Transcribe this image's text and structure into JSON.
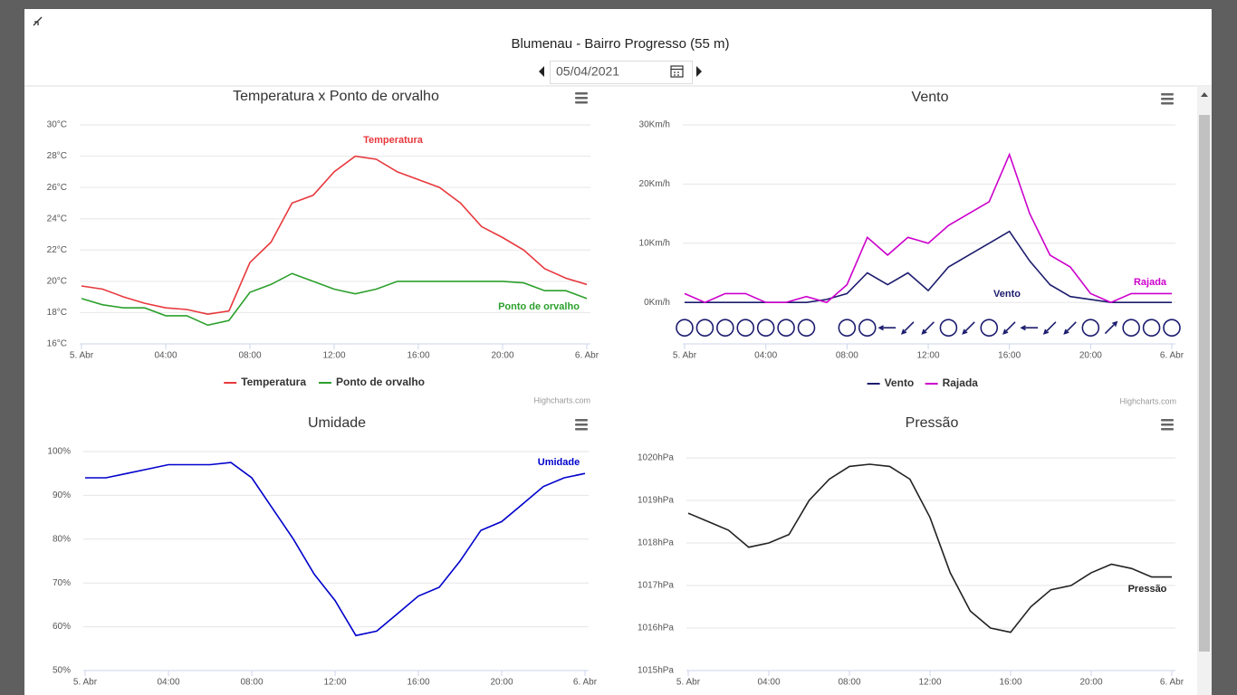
{
  "header": {
    "title": "Blumenau - Bairro Progresso (55 m)",
    "date": "05/04/2021"
  },
  "chart_data": [
    {
      "type": "line",
      "title": "Temperatura x Ponto de orvalho",
      "legend": true,
      "grid": true,
      "credits": "Highcharts.com",
      "x": [
        0,
        1,
        2,
        3,
        4,
        5,
        6,
        7,
        8,
        9,
        10,
        11,
        12,
        13,
        14,
        15,
        16,
        17,
        18,
        19,
        20,
        21,
        22,
        23,
        24
      ],
      "xlim": [
        0,
        24
      ],
      "xticks": [
        {
          "value": 0,
          "label": "5. Abr"
        },
        {
          "value": 4,
          "label": "04:00"
        },
        {
          "value": 8,
          "label": "08:00"
        },
        {
          "value": 12,
          "label": "12:00"
        },
        {
          "value": 16,
          "label": "16:00"
        },
        {
          "value": 20,
          "label": "20:00"
        },
        {
          "value": 24,
          "label": "6. Abr"
        }
      ],
      "ylim": [
        16,
        30
      ],
      "yticks": [
        {
          "value": 16,
          "label": "16°C"
        },
        {
          "value": 18,
          "label": "18°C"
        },
        {
          "value": 20,
          "label": "20°C"
        },
        {
          "value": 22,
          "label": "22°C"
        },
        {
          "value": 24,
          "label": "24°C"
        },
        {
          "value": 26,
          "label": "26°C"
        },
        {
          "value": 28,
          "label": "28°C"
        },
        {
          "value": 30,
          "label": "30°C"
        }
      ],
      "series": [
        {
          "name": "Temperatura",
          "color": "#e8383d",
          "values": [
            19.7,
            19.5,
            19.0,
            18.6,
            18.3,
            18.2,
            17.9,
            18.1,
            21.2,
            22.5,
            25.0,
            25.5,
            27.0,
            28.0,
            27.8,
            27.0,
            26.5,
            26.0,
            25.0,
            23.5,
            22.8,
            22.0,
            20.8,
            20.2,
            19.8
          ]
        },
        {
          "name": "Ponto de orvalho",
          "color": "#2ca02c",
          "values": [
            18.9,
            18.5,
            18.3,
            18.3,
            17.8,
            17.8,
            17.2,
            17.5,
            19.3,
            19.8,
            20.5,
            20.0,
            19.5,
            19.2,
            19.5,
            20.0,
            20.0,
            20.0,
            20.0,
            20.0,
            20.0,
            19.9,
            19.4,
            19.4,
            18.9
          ]
        }
      ]
    },
    {
      "type": "line",
      "title": "Vento",
      "legend": true,
      "grid": true,
      "credits": "Highcharts.com",
      "x": [
        0,
        1,
        2,
        3,
        4,
        5,
        6,
        7,
        8,
        9,
        10,
        11,
        12,
        13,
        14,
        15,
        16,
        17,
        18,
        19,
        20,
        21,
        22,
        23,
        24
      ],
      "xlim": [
        0,
        24
      ],
      "xticks": [
        {
          "value": 0,
          "label": "5. Abr"
        },
        {
          "value": 4,
          "label": "04:00"
        },
        {
          "value": 8,
          "label": "08:00"
        },
        {
          "value": 12,
          "label": "12:00"
        },
        {
          "value": 16,
          "label": "16:00"
        },
        {
          "value": 20,
          "label": "20:00"
        },
        {
          "value": 24,
          "label": "6. Abr"
        }
      ],
      "ylim": [
        -7,
        30
      ],
      "yticks": [
        {
          "value": 0,
          "label": "0Km/h"
        },
        {
          "value": 10,
          "label": "10Km/h"
        },
        {
          "value": 20,
          "label": "20Km/h"
        },
        {
          "value": 30,
          "label": "30Km/h"
        }
      ],
      "series": [
        {
          "name": "Vento",
          "color": "#1c1c6e",
          "values": [
            0,
            0,
            0,
            0,
            0,
            0,
            0,
            0.5,
            1.5,
            5,
            3,
            5,
            2,
            6,
            8,
            10,
            12,
            7,
            3,
            1,
            0.5,
            0,
            0,
            0,
            0
          ]
        },
        {
          "name": "Rajada",
          "color": "#cc00cc",
          "values": [
            1.5,
            0,
            1.5,
            1.5,
            0,
            0,
            1,
            0,
            3,
            11,
            8,
            11,
            10,
            13,
            15,
            17,
            25,
            15,
            8,
            6,
            1.5,
            0,
            1.5,
            1.5,
            1.5
          ]
        }
      ],
      "direction_x": [
        0,
        1,
        2,
        3,
        4,
        5,
        6,
        8,
        9,
        10,
        11,
        12,
        13,
        14,
        15,
        16,
        17,
        18,
        19,
        20,
        21,
        22,
        23,
        24
      ],
      "wind_direction": [
        null,
        null,
        null,
        null,
        null,
        null,
        null,
        null,
        null,
        90,
        45,
        45,
        null,
        45,
        null,
        45,
        90,
        45,
        45,
        null,
        225,
        null,
        null,
        null
      ]
    },
    {
      "type": "line",
      "title": "Umidade",
      "legend": false,
      "grid": true,
      "x": [
        0,
        1,
        2,
        3,
        4,
        5,
        6,
        7,
        8,
        9,
        10,
        11,
        12,
        13,
        14,
        15,
        16,
        17,
        18,
        19,
        20,
        21,
        22,
        23,
        24
      ],
      "xlim": [
        0,
        24
      ],
      "xticks": [
        {
          "value": 0,
          "label": "5. Abr"
        },
        {
          "value": 4,
          "label": "04:00"
        },
        {
          "value": 8,
          "label": "08:00"
        },
        {
          "value": 12,
          "label": "12:00"
        },
        {
          "value": 16,
          "label": "16:00"
        },
        {
          "value": 20,
          "label": "20:00"
        },
        {
          "value": 24,
          "label": "6. Abr"
        }
      ],
      "ylim": [
        50,
        100
      ],
      "yticks": [
        {
          "value": 50,
          "label": "50%"
        },
        {
          "value": 60,
          "label": "60%"
        },
        {
          "value": 70,
          "label": "70%"
        },
        {
          "value": 80,
          "label": "80%"
        },
        {
          "value": 90,
          "label": "90%"
        },
        {
          "value": 100,
          "label": "100%"
        }
      ],
      "series": [
        {
          "name": "Umidade",
          "color": "#0000cc",
          "values": [
            94,
            94,
            95,
            96,
            97,
            97,
            97,
            97.5,
            94,
            87,
            80,
            72,
            66,
            58,
            59,
            63,
            67,
            69,
            75,
            82,
            84,
            88,
            92,
            94,
            95
          ]
        }
      ]
    },
    {
      "type": "line",
      "title": "Pressão",
      "legend": false,
      "grid": true,
      "x": [
        0,
        1,
        2,
        3,
        4,
        5,
        6,
        7,
        8,
        9,
        10,
        11,
        12,
        13,
        14,
        15,
        16,
        17,
        18,
        19,
        20,
        21,
        22,
        23,
        24
      ],
      "xlim": [
        0,
        24
      ],
      "xticks": [
        {
          "value": 0,
          "label": "5. Abr"
        },
        {
          "value": 4,
          "label": "04:00"
        },
        {
          "value": 8,
          "label": "08:00"
        },
        {
          "value": 12,
          "label": "12:00"
        },
        {
          "value": 16,
          "label": "16:00"
        },
        {
          "value": 20,
          "label": "20:00"
        },
        {
          "value": 24,
          "label": "6. Abr"
        }
      ],
      "ylim": [
        1015,
        1020
      ],
      "yticks": [
        {
          "value": 1015,
          "label": "1015hPa"
        },
        {
          "value": 1016,
          "label": "1016hPa"
        },
        {
          "value": 1017,
          "label": "1017hPa"
        },
        {
          "value": 1018,
          "label": "1018hPa"
        },
        {
          "value": 1019,
          "label": "1019hPa"
        },
        {
          "value": 1020,
          "label": "1020hPa"
        }
      ],
      "series": [
        {
          "name": "Pressão",
          "color": "#222222",
          "values": [
            1018.7,
            1018.5,
            1018.3,
            1017.9,
            1018.0,
            1018.2,
            1019.0,
            1019.5,
            1019.8,
            1019.85,
            1019.8,
            1019.5,
            1018.6,
            1017.3,
            1016.4,
            1016.0,
            1015.9,
            1016.5,
            1016.9,
            1017.0,
            1017.3,
            1017.5,
            1017.4,
            1017.2,
            1017.2
          ]
        }
      ]
    }
  ]
}
